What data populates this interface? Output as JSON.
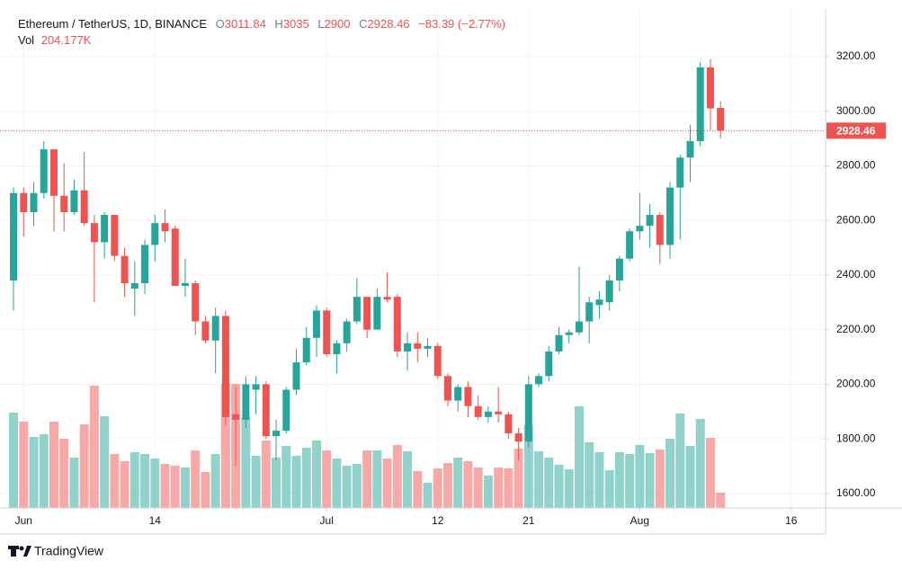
{
  "chart_data": {
    "type": "candlestick",
    "title": "Ethereum / TetherUS, 1D, BINANCE",
    "header": {
      "labels": [
        "O",
        "H",
        "L",
        "C"
      ],
      "values": [
        3011.84,
        3035,
        2900,
        2928.46
      ],
      "change": {
        "value": -83.39,
        "label": "−83.39 (−2.77%)"
      }
    },
    "up_color": "#26a69a",
    "down_color": "#ef5350",
    "open": [
      2380,
      2700,
      2630,
      2700,
      2860,
      2690,
      2630,
      2710,
      2590,
      2520,
      2620,
      2470,
      2350,
      2370,
      2510,
      2590,
      2570,
      2360,
      2370,
      2230,
      2160,
      2250,
      1890,
      1870,
      1980,
      2000,
      1810,
      1830,
      1980,
      2080,
      2170,
      2270,
      2110,
      2150,
      2230,
      2320,
      2200,
      2320,
      2320,
      2120,
      2150,
      2130,
      2140,
      2030,
      1940,
      1990,
      1920,
      1880,
      1900,
      1890,
      1820,
      1790,
      2000,
      2030,
      2120,
      2180,
      2190,
      2230,
      2290,
      2300,
      2380,
      2460,
      2560,
      2580,
      2620,
      2510,
      2720,
      2830,
      2890,
      3160,
      3011.84
    ],
    "high": [
      2720,
      2720,
      2740,
      2890,
      2860,
      2810,
      2750,
      2850,
      2620,
      2630,
      2620,
      2500,
      2450,
      2530,
      2620,
      2640,
      2580,
      2460,
      2380,
      2250,
      2280,
      2270,
      1990,
      2030,
      2030,
      2010,
      1870,
      1990,
      2130,
      2210,
      2290,
      2280,
      2160,
      2240,
      2390,
      2320,
      2350,
      2410,
      2330,
      2190,
      2190,
      2170,
      2150,
      2040,
      2000,
      2010,
      1960,
      1920,
      1990,
      1900,
      1840,
      2030,
      2040,
      2140,
      2210,
      2200,
      2430,
      2320,
      2340,
      2400,
      2470,
      2570,
      2700,
      2660,
      2630,
      2740,
      2840,
      2950,
      3180,
      3190,
      3035
    ],
    "low": [
      2270,
      2540,
      2580,
      2680,
      2560,
      2560,
      2620,
      2580,
      2300,
      2460,
      2450,
      2320,
      2250,
      2330,
      2450,
      2520,
      2360,
      2320,
      2180,
      2150,
      2040,
      1850,
      1700,
      1840,
      1890,
      1800,
      1720,
      1820,
      1960,
      2070,
      2100,
      2100,
      2040,
      2120,
      2220,
      2170,
      2200,
      2300,
      2100,
      2050,
      2080,
      2100,
      2020,
      1920,
      1900,
      1880,
      1870,
      1860,
      1860,
      1800,
      1720,
      1770,
      1990,
      2010,
      2110,
      2150,
      2180,
      2150,
      2240,
      2270,
      2340,
      2450,
      2530,
      2500,
      2440,
      2460,
      2530,
      2740,
      2870,
      2930,
      2900
    ],
    "close": [
      2700,
      2630,
      2700,
      2860,
      2690,
      2630,
      2710,
      2590,
      2520,
      2620,
      2470,
      2370,
      2370,
      2510,
      2590,
      2560,
      2360,
      2370,
      2230,
      2160,
      2250,
      1880,
      1870,
      2000,
      2000,
      1810,
      1830,
      1980,
      2080,
      2170,
      2270,
      2110,
      2150,
      2230,
      2320,
      2200,
      2320,
      2310,
      2120,
      2150,
      2130,
      2140,
      2030,
      1940,
      1990,
      1920,
      1880,
      1900,
      1890,
      1820,
      1790,
      2000,
      2030,
      2120,
      2180,
      2190,
      2230,
      2300,
      2310,
      2380,
      2460,
      2560,
      2580,
      2620,
      2510,
      2720,
      2830,
      2890,
      3160,
      3010,
      2928.46
    ],
    "volume": {
      "name": "Vol",
      "last_label": "204.177K",
      "values": [
        1272,
        1152,
        948,
        984,
        1152,
        924,
        672,
        1116,
        1632,
        1224,
        720,
        624,
        744,
        720,
        660,
        588,
        564,
        540,
        768,
        480,
        720,
        1656,
        1656,
        1212,
        696,
        900,
        672,
        828,
        696,
        804,
        900,
        768,
        660,
        564,
        588,
        768,
        768,
        660,
        840,
        756,
        492,
        336,
        528,
        600,
        672,
        624,
        540,
        432,
        540,
        528,
        792,
        1104,
        756,
        672,
        576,
        516,
        1356,
        876,
        744,
        504,
        744,
        720,
        840,
        732,
        780,
        924,
        1260,
        828,
        1188,
        936,
        204.177
      ],
      "ylim": [
        0,
        6660
      ]
    },
    "xlim": [
      -1.34,
      80.4
    ],
    "xticks": [
      {
        "value": 1,
        "label": "Jun"
      },
      {
        "value": 14,
        "label": "14"
      },
      {
        "value": 31,
        "label": "Jul"
      },
      {
        "value": 42,
        "label": "12"
      },
      {
        "value": 51,
        "label": "21"
      },
      {
        "value": 62,
        "label": "Aug"
      },
      {
        "value": 77,
        "label": "16"
      }
    ],
    "ylim": [
      1547,
      3374
    ],
    "yticks": [
      {
        "value": 1600,
        "label": "1600.00"
      },
      {
        "value": 1800,
        "label": "1800.00"
      },
      {
        "value": 2000,
        "label": "2000.00"
      },
      {
        "value": 2200,
        "label": "2200.00"
      },
      {
        "value": 2400,
        "label": "2400.00"
      },
      {
        "value": 2600,
        "label": "2600.00"
      },
      {
        "value": 2800,
        "label": "2800.00"
      },
      {
        "value": 3000,
        "label": "3000.00"
      },
      {
        "value": 3200,
        "label": "3200.00"
      }
    ],
    "grid": true,
    "brand": "TradingView"
  }
}
